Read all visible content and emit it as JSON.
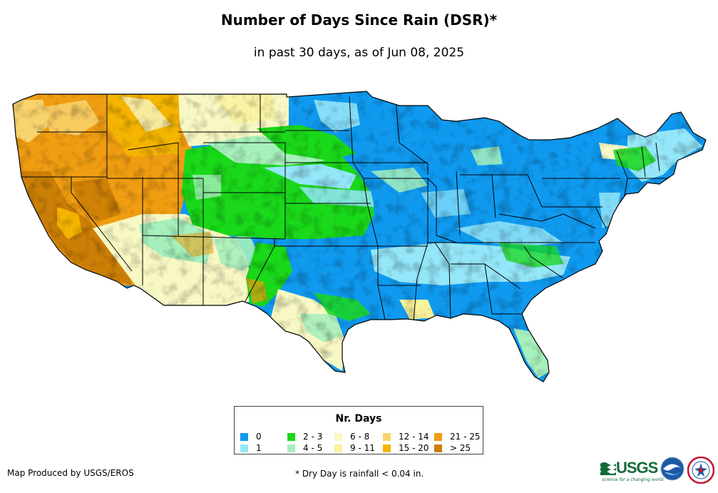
{
  "header": {
    "title": "Number of Days Since Rain (DSR)*",
    "subtitle": "in past 30 days, as of Jun 08, 2025"
  },
  "map": {
    "region": "Contiguous United States",
    "boundary_color": "#000000"
  },
  "legend": {
    "title": "Nr. Days",
    "items": [
      {
        "label": "0",
        "color": "#0f9af0"
      },
      {
        "label": "1",
        "color": "#94e6f9"
      },
      {
        "label": "2 - 3",
        "color": "#1ad81a"
      },
      {
        "label": "4 - 5",
        "color": "#a6f0bc"
      },
      {
        "label": "6 - 8",
        "color": "#f8f8c4"
      },
      {
        "label": "9 - 11",
        "color": "#f9f29c"
      },
      {
        "label": "12 - 14",
        "color": "#f9d46e"
      },
      {
        "label": "15 - 20",
        "color": "#f4b400"
      },
      {
        "label": "21 - 25",
        "color": "#f09d12"
      },
      {
        "label": "> 25",
        "color": "#cc7f06"
      }
    ]
  },
  "footer": {
    "credit": "Map Produced by USGS/EROS",
    "note": "* Dry Day is rainfall < 0.04 in."
  },
  "logos": {
    "usgs_text": "USGS",
    "usgs_tagline": "science for a changing world",
    "agency_icons": [
      "usgs-logo-icon",
      "noaa-logo-icon",
      "nws-logo-icon"
    ]
  }
}
